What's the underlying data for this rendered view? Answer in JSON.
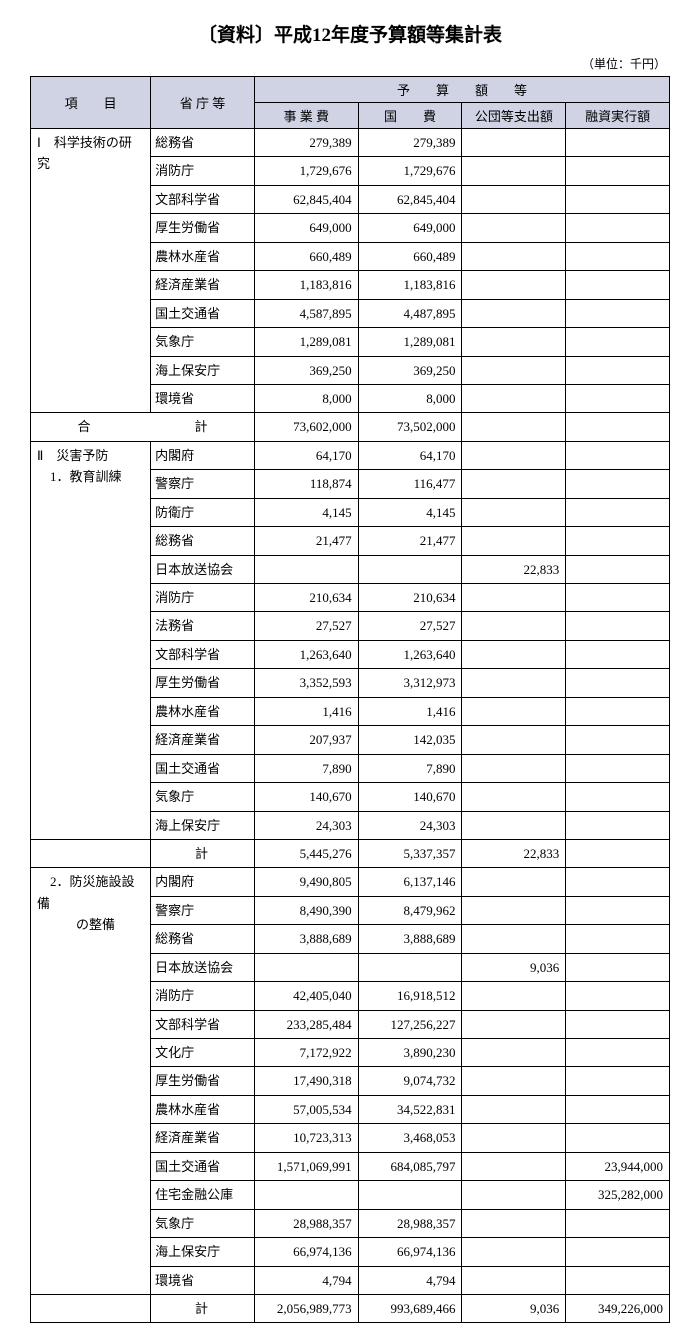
{
  "title": "〔資料〕平成12年度予算額等集計表",
  "unit": "（単位：千円）",
  "header": {
    "item": "項　　目",
    "ministry": "省 庁 等",
    "budget_group": "予　　算　　額　　等",
    "c1": "事 業 費",
    "c2": "国　　費",
    "c3": "公団等支出額",
    "c4": "融資実行額"
  },
  "section1": {
    "label": "Ⅰ　科学技術の研究",
    "rows": [
      {
        "m": "総務省",
        "v1": "279,389",
        "v2": "279,389",
        "v3": "",
        "v4": ""
      },
      {
        "m": "消防庁",
        "v1": "1,729,676",
        "v2": "1,729,676",
        "v3": "",
        "v4": ""
      },
      {
        "m": "文部科学省",
        "v1": "62,845,404",
        "v2": "62,845,404",
        "v3": "",
        "v4": ""
      },
      {
        "m": "厚生労働省",
        "v1": "649,000",
        "v2": "649,000",
        "v3": "",
        "v4": ""
      },
      {
        "m": "農林水産省",
        "v1": "660,489",
        "v2": "660,489",
        "v3": "",
        "v4": ""
      },
      {
        "m": "経済産業省",
        "v1": "1,183,816",
        "v2": "1,183,816",
        "v3": "",
        "v4": ""
      },
      {
        "m": "国土交通省",
        "v1": "4,587,895",
        "v2": "4,487,895",
        "v3": "",
        "v4": ""
      },
      {
        "m": "気象庁",
        "v1": "1,289,081",
        "v2": "1,289,081",
        "v3": "",
        "v4": ""
      },
      {
        "m": "海上保安庁",
        "v1": "369,250",
        "v2": "369,250",
        "v3": "",
        "v4": ""
      },
      {
        "m": "環境省",
        "v1": "8,000",
        "v2": "8,000",
        "v3": "",
        "v4": ""
      }
    ],
    "subtotal": {
      "label": "合　　　　　　　　計",
      "v1": "73,602,000",
      "v2": "73,502,000",
      "v3": "",
      "v4": ""
    }
  },
  "section2": {
    "label": "Ⅱ　災害予防",
    "sub1": {
      "label": "　1．教育訓練",
      "rows": [
        {
          "m": "内閣府",
          "v1": "64,170",
          "v2": "64,170",
          "v3": "",
          "v4": ""
        },
        {
          "m": "警察庁",
          "v1": "118,874",
          "v2": "116,477",
          "v3": "",
          "v4": ""
        },
        {
          "m": "防衛庁",
          "v1": "4,145",
          "v2": "4,145",
          "v3": "",
          "v4": ""
        },
        {
          "m": "総務省",
          "v1": "21,477",
          "v2": "21,477",
          "v3": "",
          "v4": ""
        },
        {
          "m": "日本放送協会",
          "v1": "",
          "v2": "",
          "v3": "22,833",
          "v4": ""
        },
        {
          "m": "消防庁",
          "v1": "210,634",
          "v2": "210,634",
          "v3": "",
          "v4": ""
        },
        {
          "m": "法務省",
          "v1": "27,527",
          "v2": "27,527",
          "v3": "",
          "v4": ""
        },
        {
          "m": "文部科学省",
          "v1": "1,263,640",
          "v2": "1,263,640",
          "v3": "",
          "v4": ""
        },
        {
          "m": "厚生労働省",
          "v1": "3,352,593",
          "v2": "3,312,973",
          "v3": "",
          "v4": ""
        },
        {
          "m": "農林水産省",
          "v1": "1,416",
          "v2": "1,416",
          "v3": "",
          "v4": ""
        },
        {
          "m": "経済産業省",
          "v1": "207,937",
          "v2": "142,035",
          "v3": "",
          "v4": ""
        },
        {
          "m": "国土交通省",
          "v1": "7,890",
          "v2": "7,890",
          "v3": "",
          "v4": ""
        },
        {
          "m": "気象庁",
          "v1": "140,670",
          "v2": "140,670",
          "v3": "",
          "v4": ""
        },
        {
          "m": "海上保安庁",
          "v1": "24,303",
          "v2": "24,303",
          "v3": "",
          "v4": ""
        }
      ],
      "subtotal": {
        "label": "計",
        "v1": "5,445,276",
        "v2": "5,337,357",
        "v3": "22,833",
        "v4": ""
      }
    },
    "sub2": {
      "label": "　2．防災施設設備",
      "label2": "　　　の整備",
      "rows": [
        {
          "m": "内閣府",
          "v1": "9,490,805",
          "v2": "6,137,146",
          "v3": "",
          "v4": ""
        },
        {
          "m": "警察庁",
          "v1": "8,490,390",
          "v2": "8,479,962",
          "v3": "",
          "v4": ""
        },
        {
          "m": "総務省",
          "v1": "3,888,689",
          "v2": "3,888,689",
          "v3": "",
          "v4": ""
        },
        {
          "m": "日本放送協会",
          "v1": "",
          "v2": "",
          "v3": "9,036",
          "v4": ""
        },
        {
          "m": "消防庁",
          "v1": "42,405,040",
          "v2": "16,918,512",
          "v3": "",
          "v4": ""
        },
        {
          "m": "文部科学省",
          "v1": "233,285,484",
          "v2": "127,256,227",
          "v3": "",
          "v4": ""
        },
        {
          "m": "文化庁",
          "v1": "7,172,922",
          "v2": "3,890,230",
          "v3": "",
          "v4": ""
        },
        {
          "m": "厚生労働省",
          "v1": "17,490,318",
          "v2": "9,074,732",
          "v3": "",
          "v4": ""
        },
        {
          "m": "農林水産省",
          "v1": "57,005,534",
          "v2": "34,522,831",
          "v3": "",
          "v4": ""
        },
        {
          "m": "経済産業省",
          "v1": "10,723,313",
          "v2": "3,468,053",
          "v3": "",
          "v4": ""
        },
        {
          "m": "国土交通省",
          "v1": "1,571,069,991",
          "v2": "684,085,797",
          "v3": "",
          "v4": "23,944,000"
        },
        {
          "m": "住宅金融公庫",
          "v1": "",
          "v2": "",
          "v3": "",
          "v4": "325,282,000"
        },
        {
          "m": "気象庁",
          "v1": "28,988,357",
          "v2": "28,988,357",
          "v3": "",
          "v4": ""
        },
        {
          "m": "海上保安庁",
          "v1": "66,974,136",
          "v2": "66,974,136",
          "v3": "",
          "v4": ""
        },
        {
          "m": "環境省",
          "v1": "4,794",
          "v2": "4,794",
          "v3": "",
          "v4": ""
        }
      ],
      "subtotal": {
        "label": "計",
        "v1": "2,056,989,773",
        "v2": "993,689,466",
        "v3": "9,036",
        "v4": "349,226,000"
      }
    }
  }
}
